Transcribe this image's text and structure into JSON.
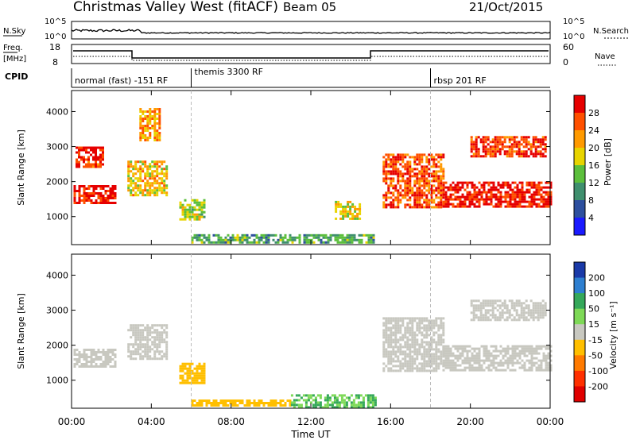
{
  "header": {
    "title": "Christmas Valley West (fitACF)",
    "beam": "Beam 05",
    "date": "21/Oct/2015"
  },
  "top_panels": {
    "nsky_label": "N.Sky",
    "nsky_ticks": [
      "10^5",
      "10^0"
    ],
    "nsearch_label": "N.Search",
    "nsearch_ticks": [
      "10^5",
      "10^0"
    ],
    "freq_label": "Freq.",
    "freq_unit": "[MHz]",
    "freq_ticks": [
      "18",
      "8"
    ],
    "nave_label": "Nave",
    "nave_ticks": [
      "60",
      "0"
    ],
    "cpid_label": "CPID",
    "cpid_segments": [
      {
        "label": "normal (fast) -151 RF",
        "start_hour": 0,
        "end_hour": 6
      },
      {
        "label": "themis 3300 RF",
        "start_hour": 6,
        "end_hour": 18
      },
      {
        "label": "rbsp 201 RF",
        "start_hour": 18,
        "end_hour": 24
      }
    ]
  },
  "chart_data": [
    {
      "type": "heatmap",
      "name_printed": "",
      "ylabel": "Slant Range [km]",
      "yticks": [
        "4000",
        "3000",
        "2000",
        "1000"
      ],
      "ylim": [
        200,
        4600
      ],
      "xlim_hours": [
        0,
        24
      ],
      "colorbar_label": "Power [dB]",
      "colorbar_ticks": [
        "28",
        "24",
        "20",
        "16",
        "12",
        "8",
        "4"
      ],
      "colorbar_colors": [
        "#e60000",
        "#ff5000",
        "#ff9a00",
        "#e8d400",
        "#5cbf3c",
        "#3f8f6e",
        "#2d4f9e",
        "#1a1aff"
      ],
      "regions": [
        {
          "x": [
            0.1,
            2.2
          ],
          "y": [
            1400,
            1900
          ],
          "value": 28
        },
        {
          "x": [
            0.2,
            1.6
          ],
          "y": [
            2400,
            3000
          ],
          "value": 26
        },
        {
          "x": [
            2.8,
            4.8
          ],
          "y": [
            1600,
            2600
          ],
          "value": 18
        },
        {
          "x": [
            3.4,
            4.4
          ],
          "y": [
            3200,
            4100
          ],
          "value": 20
        },
        {
          "x": [
            5.4,
            6.6
          ],
          "y": [
            900,
            1500
          ],
          "value": 14
        },
        {
          "x": [
            6.0,
            15.2
          ],
          "y": [
            250,
            500
          ],
          "value": 10
        },
        {
          "x": [
            13.2,
            14.4
          ],
          "y": [
            950,
            1450
          ],
          "value": 16
        },
        {
          "x": [
            15.6,
            18.6
          ],
          "y": [
            1300,
            2800
          ],
          "value": 24
        },
        {
          "x": [
            18.6,
            24.0
          ],
          "y": [
            1300,
            2000
          ],
          "value": 28
        },
        {
          "x": [
            20.0,
            23.8
          ],
          "y": [
            2700,
            3300
          ],
          "value": 26
        }
      ]
    },
    {
      "type": "heatmap",
      "name_printed": "",
      "ylabel": "Slant Range [km]",
      "yticks": [
        "4000",
        "3000",
        "2000",
        "1000"
      ],
      "ylim": [
        200,
        4600
      ],
      "xlabel": "Time UT",
      "xticks": [
        "00:00",
        "04:00",
        "08:00",
        "12:00",
        "16:00",
        "20:00",
        "00:00"
      ],
      "xlim_hours": [
        0,
        24
      ],
      "colorbar_label": "Velocity [m s⁻¹]",
      "colorbar_ticks": [
        "200",
        "100",
        "50",
        "15",
        "-15",
        "-50",
        "-100",
        "-200"
      ],
      "colorbar_colors": [
        "#1a3aa8",
        "#2e7fd0",
        "#35a85a",
        "#7ed957",
        "#c8c8c0",
        "#ffbf00",
        "#ff7a00",
        "#ff3000",
        "#e00000"
      ],
      "regions": [
        {
          "x": [
            0.1,
            2.2
          ],
          "y": [
            1400,
            1900
          ],
          "value": 0
        },
        {
          "x": [
            2.8,
            4.8
          ],
          "y": [
            1600,
            2600
          ],
          "value": 0
        },
        {
          "x": [
            5.4,
            6.6
          ],
          "y": [
            900,
            1500
          ],
          "value": -40
        },
        {
          "x": [
            6.0,
            11.0
          ],
          "y": [
            250,
            450
          ],
          "value": -40
        },
        {
          "x": [
            11.0,
            15.2
          ],
          "y": [
            250,
            600
          ],
          "value": 30
        },
        {
          "x": [
            15.6,
            18.6
          ],
          "y": [
            1300,
            2800
          ],
          "value": 0
        },
        {
          "x": [
            18.6,
            24.0
          ],
          "y": [
            1300,
            2000
          ],
          "value": 0
        },
        {
          "x": [
            20.0,
            23.8
          ],
          "y": [
            2700,
            3300
          ],
          "value": 0
        }
      ]
    }
  ]
}
